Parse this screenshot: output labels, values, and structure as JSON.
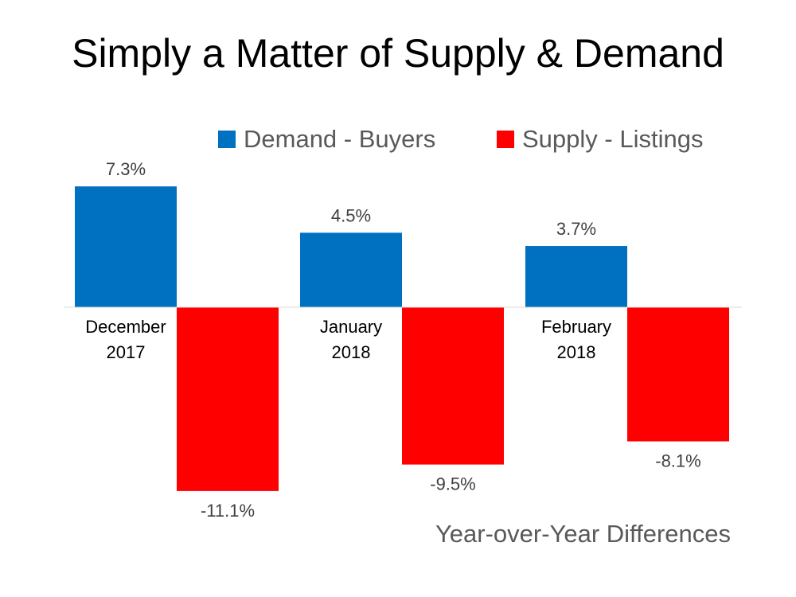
{
  "chart_data": {
    "type": "bar",
    "title": "Simply a Matter of Supply & Demand",
    "subtitle": "Year-over-Year Differences",
    "categories": [
      [
        "December",
        "2017"
      ],
      [
        "January",
        "2018"
      ],
      [
        "February",
        "2018"
      ]
    ],
    "series": [
      {
        "name": "Demand - Buyers",
        "color": "#0070C0",
        "values": [
          7.3,
          4.5,
          3.7
        ],
        "labels": [
          "7.3%",
          "4.5%",
          "3.7%"
        ]
      },
      {
        "name": "Supply - Listings",
        "color": "#FF0000",
        "values": [
          -11.1,
          -9.5,
          -8.1
        ],
        "labels": [
          "-11.1%",
          "-9.5%",
          "-8.1%"
        ]
      }
    ],
    "ylim": [
      -12,
      8
    ],
    "grid": false,
    "legend": "top",
    "axis_color": "#D9D9D9"
  }
}
